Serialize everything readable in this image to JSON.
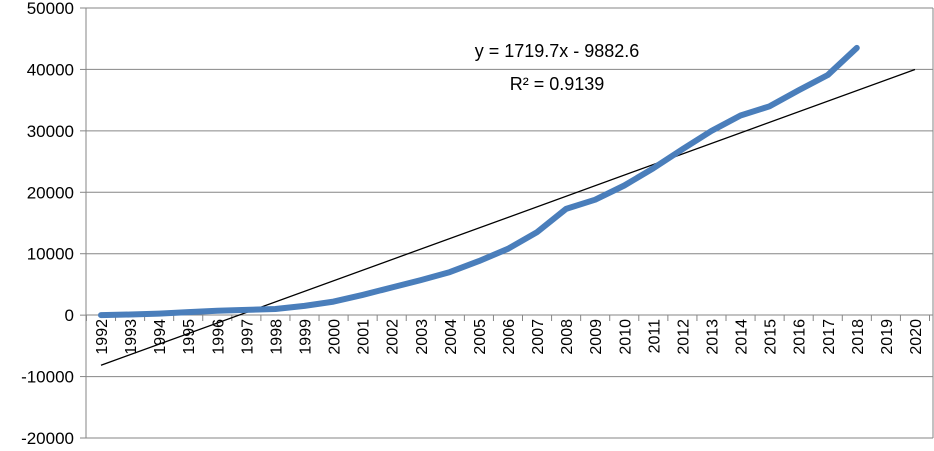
{
  "chart_data": {
    "type": "line",
    "title": "",
    "xlabel": "",
    "ylabel": "",
    "x": [
      1992,
      1993,
      1994,
      1995,
      1996,
      1997,
      1998,
      1999,
      2000,
      2001,
      2002,
      2003,
      2004,
      2005,
      2006,
      2007,
      2008,
      2009,
      2010,
      2011,
      2012,
      2013,
      2014,
      2015,
      2016,
      2017,
      2018
    ],
    "x_tick_labels": [
      "1992",
      "1993",
      "1994",
      "1995",
      "1996",
      "1997",
      "1998",
      "1999",
      "2000",
      "2001",
      "2002",
      "2003",
      "2004",
      "2005",
      "2006",
      "2007",
      "2008",
      "2009",
      "2010",
      "2011",
      "2012",
      "2013",
      "2014",
      "2015",
      "2016",
      "2017",
      "2018",
      "2019",
      "2020"
    ],
    "ylim": [
      -20000,
      50000
    ],
    "y_tick_labels": [
      "50000",
      "40000",
      "30000",
      "20000",
      "10000",
      "0",
      "-10000",
      "-20000"
    ],
    "y_ticks": [
      50000,
      40000,
      30000,
      20000,
      10000,
      0,
      -10000,
      -20000
    ],
    "grid": true,
    "series": [
      {
        "values": [
          0,
          100,
          250,
          500,
          700,
          850,
          1000,
          1500,
          2200,
          3300,
          4500,
          5700,
          7000,
          8800,
          10800,
          13500,
          17300,
          18800,
          21100,
          23900,
          27000,
          30000,
          32500,
          34000,
          36600,
          39100,
          43500
        ],
        "color": "#4a7ebb"
      }
    ],
    "trendline": {
      "slope": 1719.7,
      "intercept": -9882.6,
      "x_range": [
        1992,
        2020
      ],
      "color": "#000000"
    },
    "annotations": {
      "equation": "y = 1719.7x - 9882.6",
      "r_squared": "R² = 0.9139"
    }
  }
}
